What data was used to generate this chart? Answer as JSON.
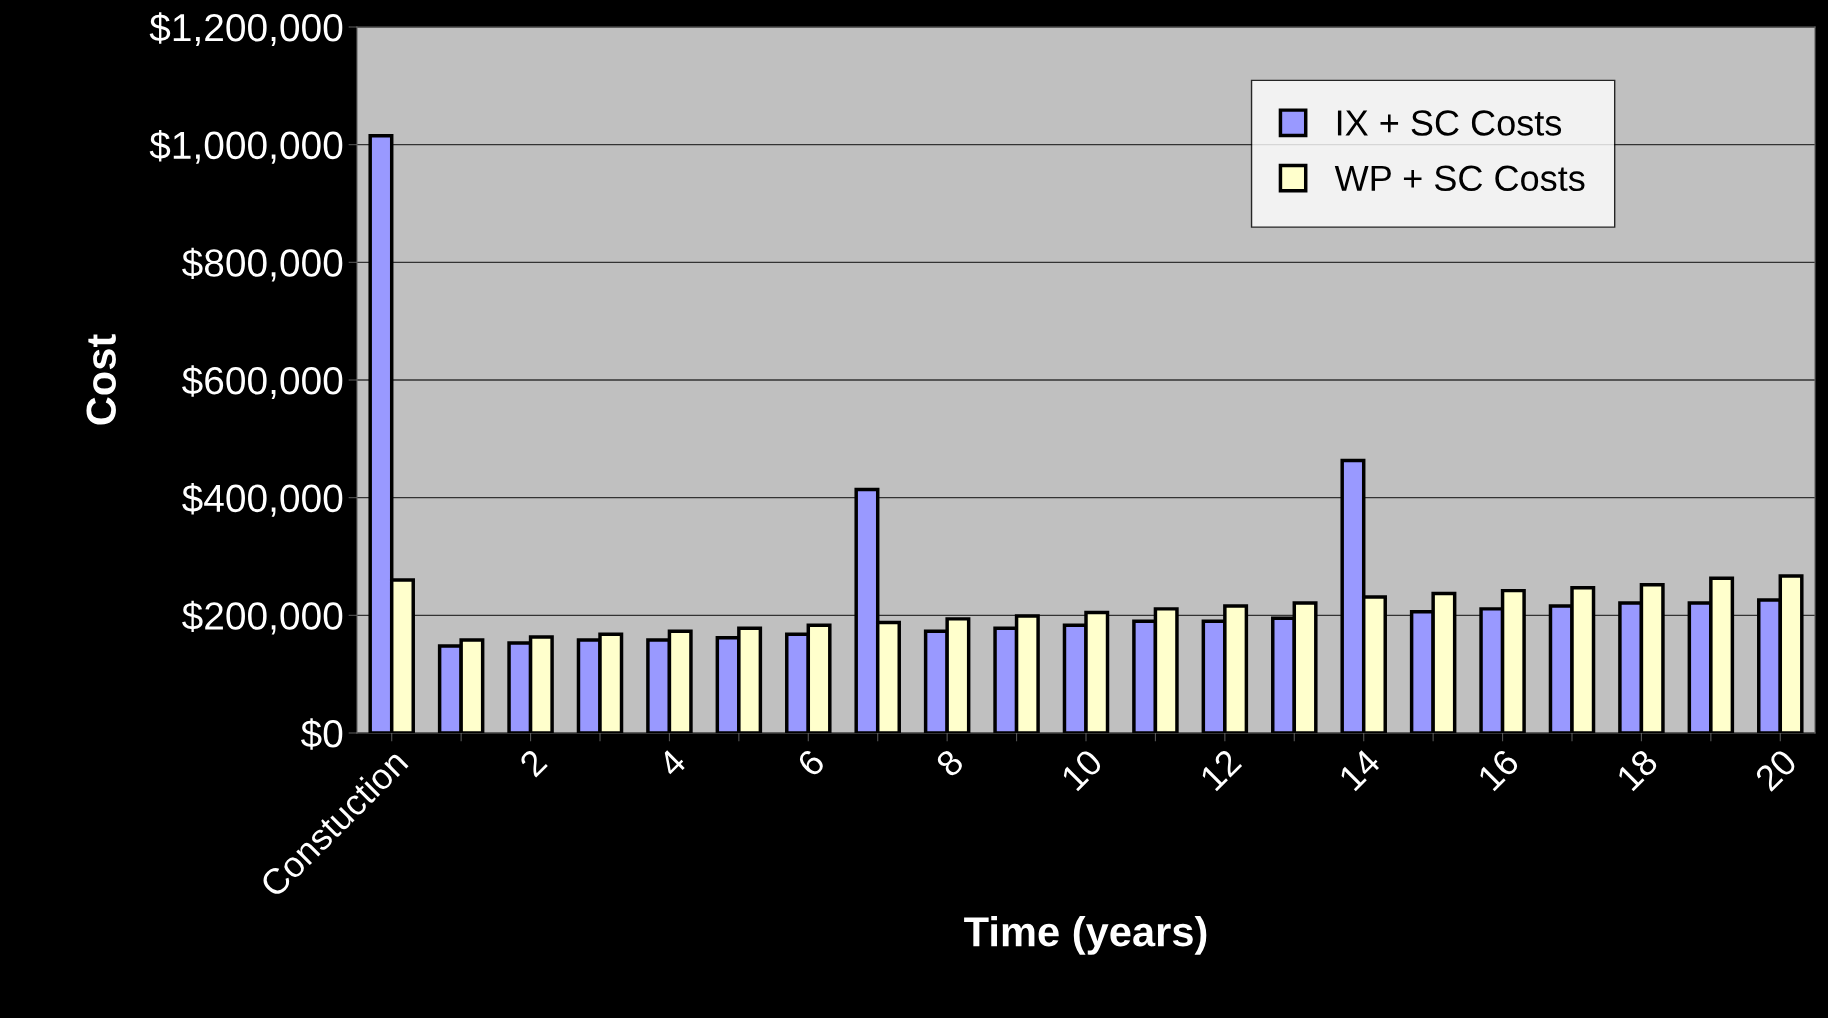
{
  "chart_data": {
    "type": "bar",
    "xlabel": "Time (years)",
    "ylabel": "Cost",
    "categories": [
      "Constuction",
      null,
      "2",
      null,
      "4",
      null,
      "6",
      null,
      "8",
      null,
      "10",
      null,
      "12",
      null,
      "14",
      null,
      "16",
      null,
      "18",
      null,
      "20"
    ],
    "series": [
      {
        "name": "IX + SC Costs",
        "color": "#9999ff",
        "values": [
          1015000,
          148000,
          153000,
          158000,
          158000,
          162000,
          168000,
          414000,
          173000,
          178000,
          183000,
          190000,
          190000,
          195000,
          463000,
          206000,
          211000,
          216000,
          221000,
          221000,
          226000
        ]
      },
      {
        "name": "WP + SC Costs",
        "color": "#ffffcc",
        "values": [
          260000,
          158000,
          163000,
          168000,
          173000,
          178000,
          183000,
          188000,
          194000,
          199000,
          205000,
          211000,
          216000,
          221000,
          231000,
          237000,
          242000,
          247000,
          252000,
          263000,
          267000
        ]
      }
    ],
    "ylim": [
      0,
      1200000
    ],
    "yticks": [
      {
        "value": 0,
        "label": "$0"
      },
      {
        "value": 200000,
        "label": "$200,000"
      },
      {
        "value": 400000,
        "label": "$400,000"
      },
      {
        "value": 600000,
        "label": "$600,000"
      },
      {
        "value": 800000,
        "label": "$800,000"
      },
      {
        "value": 1000000,
        "label": "$1,000,000"
      },
      {
        "value": 1200000,
        "label": "$1,200,000"
      }
    ],
    "grid": "y",
    "legend": "top right"
  }
}
